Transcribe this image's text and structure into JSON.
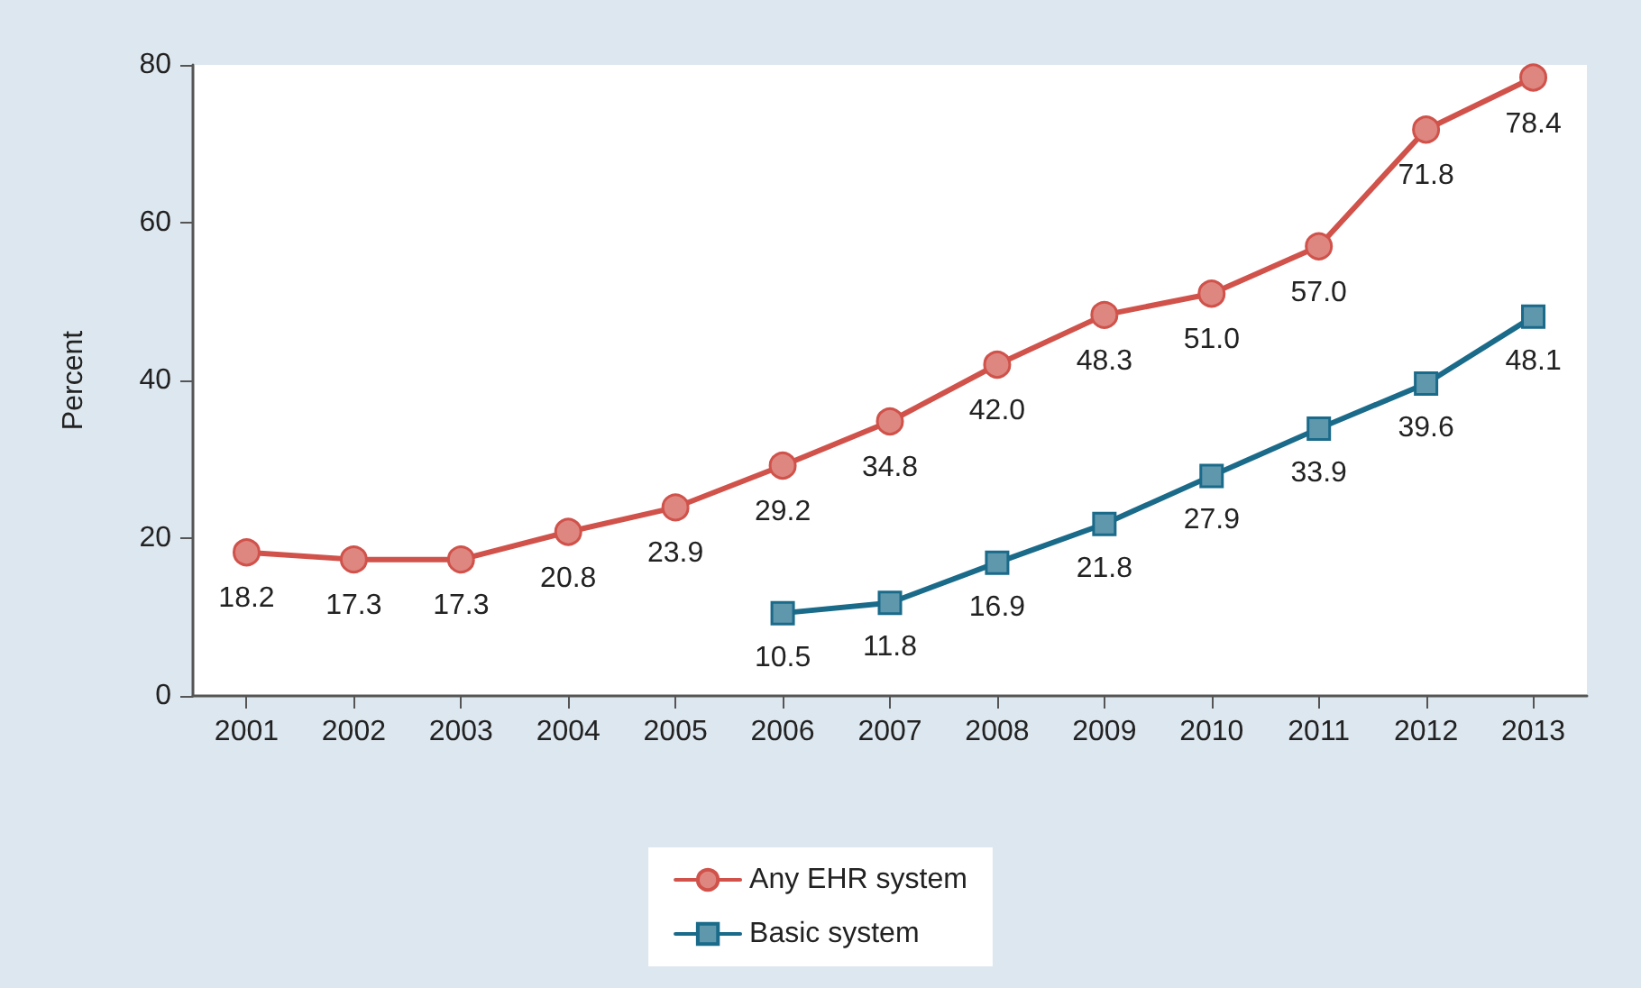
{
  "chart_data": {
    "type": "line",
    "ylabel": "Percent",
    "categories": [
      "2001",
      "2002",
      "2003",
      "2004",
      "2005",
      "2006",
      "2007",
      "2008",
      "2009",
      "2010",
      "2011",
      "2012",
      "2013"
    ],
    "series": [
      {
        "name": "Any EHR system",
        "color": "#d0524a",
        "marker": "circle",
        "values": [
          18.2,
          17.3,
          17.3,
          20.8,
          23.9,
          29.2,
          34.8,
          42.0,
          48.3,
          51.0,
          57.0,
          71.8,
          78.4
        ],
        "value_labels": [
          "18.2",
          "17.3",
          "17.3",
          "20.8",
          "23.9",
          "29.2",
          "34.8",
          "42.0",
          "48.3",
          "51.0",
          "57.0",
          "71.8",
          "78.4"
        ]
      },
      {
        "name": "Basic system",
        "color": "#1a6a8a",
        "marker": "square",
        "values": [
          null,
          null,
          null,
          null,
          null,
          10.5,
          11.8,
          16.9,
          21.8,
          27.9,
          33.9,
          39.6,
          48.1
        ],
        "value_labels": [
          null,
          null,
          null,
          null,
          null,
          "10.5",
          "11.8",
          "16.9",
          "21.8",
          "27.9",
          "33.9",
          "39.6",
          "48.1"
        ]
      }
    ],
    "ylim": [
      0,
      80
    ],
    "yticks": [
      0,
      20,
      40,
      60,
      80
    ],
    "grid": false,
    "legend": "bottom",
    "line_style": "solid"
  }
}
